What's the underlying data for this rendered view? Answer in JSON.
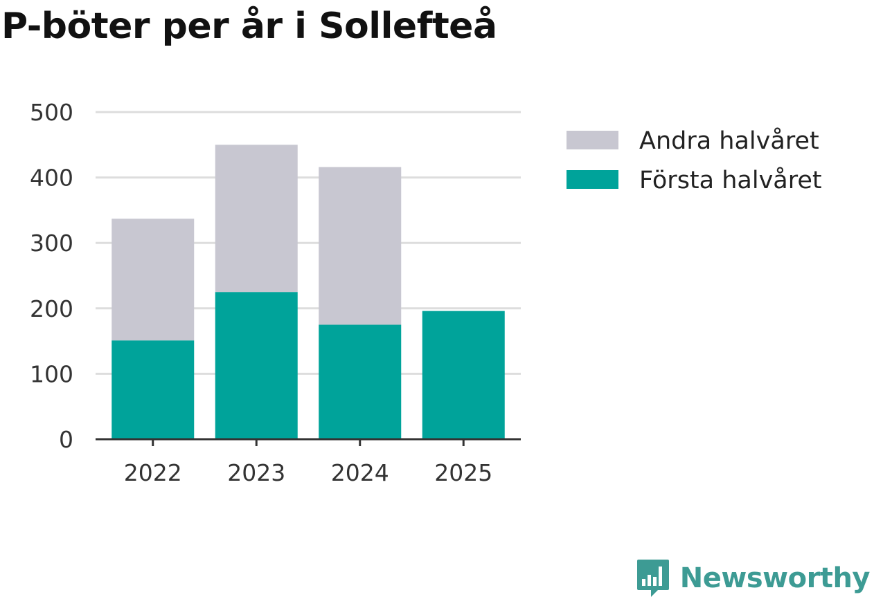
{
  "chart_data": {
    "type": "bar",
    "stacked": true,
    "title": "P-böter per år i Sollefteå",
    "categories": [
      "2022",
      "2023",
      "2024",
      "2025"
    ],
    "series": [
      {
        "name": "Första halvåret",
        "color": "#00a39a",
        "values": [
          151,
          225,
          175,
          196
        ]
      },
      {
        "name": "Andra halvåret",
        "color": "#c8c7d1",
        "values": [
          186,
          225,
          241,
          null
        ]
      }
    ],
    "legend": [
      "Andra halvåret",
      "Första halvåret"
    ],
    "ylim": [
      0,
      500
    ],
    "yticks": [
      "0",
      "100",
      "200",
      "300",
      "400",
      "500"
    ],
    "xlabel": "",
    "ylabel": "",
    "grid": true,
    "legend_position": "right"
  },
  "brand": {
    "name": "Newsworthy",
    "logo_icon": "newsworthy-chart-icon",
    "color": "#3d9b94"
  }
}
